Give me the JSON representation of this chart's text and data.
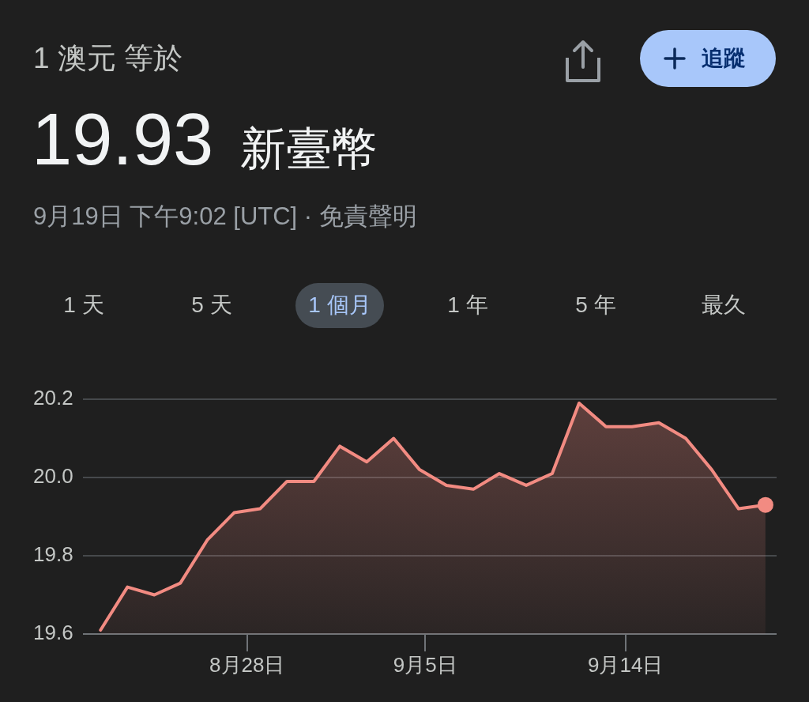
{
  "chart_data": {
    "type": "area",
    "title": "1 澳元 等於",
    "subtitle": "19.93 新臺幣",
    "annotations": [
      "9月19日 下午9:02 [UTC] · 免責聲明",
      "1 天",
      "5 天",
      "1 個月",
      "1 年",
      "5 年",
      "最久",
      "追蹤"
    ],
    "x": [
      "--08-21T10:00",
      "--08-22T15:00",
      "--08-23T20:00",
      "--08-25T00:00",
      "--08-26T05:00",
      "--08-27T10:00",
      "--08-28T14:00",
      "--08-29T19:00",
      "--08-31T00:00",
      "--09-01T04:00",
      "--09-02T09:00",
      "--09-03T14:00",
      "--09-04T18:00",
      "--09-05T23:00",
      "--09-07T04:00",
      "--09-08T08:00",
      "--09-09T13:00",
      "--09-10T17:00",
      "--09-11T22:00",
      "--09-13T03:00",
      "--09-14T07:00",
      "--09-15T12:00",
      "--09-16T17:00",
      "--09-17T21:00",
      "--09-19T02:00",
      "--09-20T07:00"
    ],
    "series": [
      {
        "color": "#f28b82",
        "values": [
          19.61,
          19.72,
          19.7,
          19.73,
          19.84,
          19.91,
          19.92,
          19.99,
          19.99,
          20.08,
          20.04,
          20.1,
          20.02,
          19.98,
          19.97,
          20.01,
          19.98,
          20.01,
          20.19,
          20.13,
          20.13,
          20.14,
          20.1,
          20.02,
          19.92,
          19.93
        ]
      },
      {
        "type": "scatter",
        "marker": "circle",
        "color": "#f28b82",
        "x": [
          "--09-20T07:00"
        ],
        "values": [
          19.93
        ]
      }
    ],
    "xlim": [
      "--08-20T15:00",
      "--09-20T19:00"
    ],
    "xticks": [
      {
        "value": "--08-28",
        "label": "8月28日"
      },
      {
        "value": "--09-05",
        "label": "9月5日"
      },
      {
        "value": "--09-14",
        "label": "9月14日"
      }
    ],
    "ylim": [
      19.6,
      20.2
    ],
    "yticks": [
      19.6,
      19.8,
      {
        "value": 20,
        "label": "20.0"
      },
      20.2
    ],
    "grid": "y"
  }
}
